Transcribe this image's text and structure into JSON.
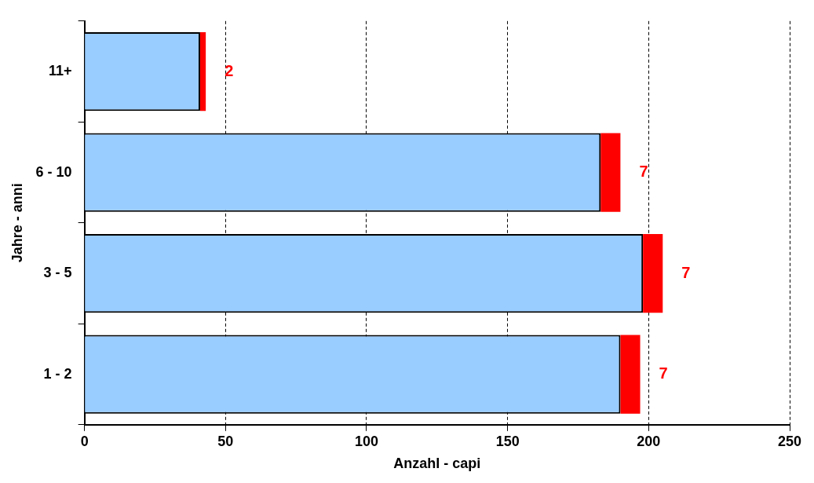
{
  "chart_data": {
    "type": "bar",
    "orientation": "horizontal",
    "stacked": true,
    "xlabel": "Anzahl - capi",
    "ylabel": "Jahre - anni",
    "categories": [
      "11+",
      "6 - 10",
      "3 - 5",
      "1 - 2"
    ],
    "series": [
      {
        "color": "#99ccff",
        "values": [
          41,
          183,
          198,
          190
        ]
      },
      {
        "color": "#ff0000",
        "values": [
          2,
          7,
          7,
          7
        ],
        "value_labels": [
          "2",
          "7",
          "7",
          "7"
        ]
      }
    ],
    "xlim": [
      0,
      250
    ],
    "xticks": [
      0,
      50,
      100,
      150,
      200,
      250
    ],
    "grid": "x",
    "legend": false
  }
}
